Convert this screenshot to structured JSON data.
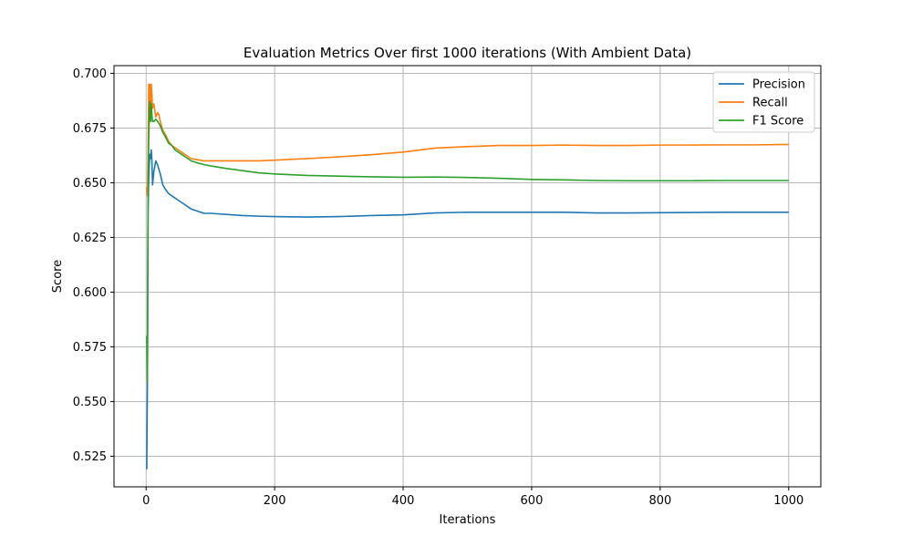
{
  "chart_data": {
    "type": "line",
    "title": "Evaluation Metrics Over first 1000 iterations (With Ambient Data)",
    "xlabel": "Iterations",
    "ylabel": "Score",
    "xlim": [
      -50,
      1050
    ],
    "ylim": [
      0.511,
      0.7035
    ],
    "xticks": [
      0,
      200,
      400,
      600,
      800,
      1000
    ],
    "yticks": [
      0.525,
      0.55,
      0.575,
      0.6,
      0.625,
      0.65,
      0.675,
      0.7
    ],
    "ytick_labels": [
      "0.525",
      "0.550",
      "0.575",
      "0.600",
      "0.625",
      "0.650",
      "0.675",
      "0.700"
    ],
    "grid": true,
    "legend_position": "top-right",
    "series": [
      {
        "name": "Precision",
        "color": "#1f77b4",
        "points": [
          [
            1,
            0.519
          ],
          [
            2,
            0.559
          ],
          [
            3,
            0.637
          ],
          [
            4,
            0.651
          ],
          [
            5,
            0.659
          ],
          [
            6,
            0.663
          ],
          [
            7,
            0.661
          ],
          [
            8,
            0.665
          ],
          [
            9,
            0.66
          ],
          [
            10,
            0.649
          ],
          [
            12,
            0.655
          ],
          [
            15,
            0.66
          ],
          [
            18,
            0.658
          ],
          [
            22,
            0.654
          ],
          [
            26,
            0.649
          ],
          [
            30,
            0.647
          ],
          [
            35,
            0.645
          ],
          [
            40,
            0.644
          ],
          [
            45,
            0.643
          ],
          [
            50,
            0.642
          ],
          [
            55,
            0.641
          ],
          [
            60,
            0.64
          ],
          [
            65,
            0.639
          ],
          [
            70,
            0.638
          ],
          [
            80,
            0.637
          ],
          [
            90,
            0.636
          ],
          [
            100,
            0.636
          ],
          [
            125,
            0.6355
          ],
          [
            150,
            0.635
          ],
          [
            175,
            0.6347
          ],
          [
            200,
            0.6345
          ],
          [
            250,
            0.6343
          ],
          [
            300,
            0.6345
          ],
          [
            350,
            0.635
          ],
          [
            400,
            0.6353
          ],
          [
            450,
            0.6362
          ],
          [
            500,
            0.6365
          ],
          [
            550,
            0.6365
          ],
          [
            600,
            0.6365
          ],
          [
            650,
            0.6365
          ],
          [
            700,
            0.6362
          ],
          [
            750,
            0.6362
          ],
          [
            800,
            0.6363
          ],
          [
            850,
            0.6364
          ],
          [
            900,
            0.6365
          ],
          [
            950,
            0.6365
          ],
          [
            1000,
            0.6365
          ]
        ]
      },
      {
        "name": "Recall",
        "color": "#ff7f0e",
        "points": [
          [
            1,
            0.648
          ],
          [
            2,
            0.644
          ],
          [
            3,
            0.662
          ],
          [
            4,
            0.695
          ],
          [
            5,
            0.685
          ],
          [
            6,
            0.695
          ],
          [
            7,
            0.685
          ],
          [
            8,
            0.695
          ],
          [
            9,
            0.69
          ],
          [
            10,
            0.684
          ],
          [
            12,
            0.686
          ],
          [
            15,
            0.68
          ],
          [
            18,
            0.682
          ],
          [
            20,
            0.681
          ],
          [
            22,
            0.678
          ],
          [
            26,
            0.674
          ],
          [
            30,
            0.672
          ],
          [
            35,
            0.669
          ],
          [
            40,
            0.667
          ],
          [
            45,
            0.666
          ],
          [
            50,
            0.665
          ],
          [
            55,
            0.664
          ],
          [
            60,
            0.663
          ],
          [
            65,
            0.662
          ],
          [
            70,
            0.661
          ],
          [
            80,
            0.6605
          ],
          [
            90,
            0.66
          ],
          [
            100,
            0.66
          ],
          [
            125,
            0.66
          ],
          [
            150,
            0.66
          ],
          [
            175,
            0.66
          ],
          [
            200,
            0.6603
          ],
          [
            250,
            0.661
          ],
          [
            300,
            0.6618
          ],
          [
            350,
            0.6628
          ],
          [
            400,
            0.664
          ],
          [
            450,
            0.6658
          ],
          [
            500,
            0.6665
          ],
          [
            550,
            0.667
          ],
          [
            600,
            0.667
          ],
          [
            650,
            0.6672
          ],
          [
            700,
            0.667
          ],
          [
            750,
            0.667
          ],
          [
            800,
            0.6672
          ],
          [
            850,
            0.6672
          ],
          [
            900,
            0.6673
          ],
          [
            950,
            0.6673
          ],
          [
            1000,
            0.6675
          ]
        ]
      },
      {
        "name": "F1 Score",
        "color": "#2ca02c",
        "points": [
          [
            1,
            0.58
          ],
          [
            2,
            0.559
          ],
          [
            3,
            0.637
          ],
          [
            4,
            0.67
          ],
          [
            5,
            0.683
          ],
          [
            6,
            0.687
          ],
          [
            7,
            0.678
          ],
          [
            8,
            0.686
          ],
          [
            9,
            0.681
          ],
          [
            10,
            0.678
          ],
          [
            12,
            0.678
          ],
          [
            15,
            0.679
          ],
          [
            18,
            0.678
          ],
          [
            20,
            0.677
          ],
          [
            22,
            0.676
          ],
          [
            26,
            0.673
          ],
          [
            30,
            0.671
          ],
          [
            35,
            0.668
          ],
          [
            40,
            0.667
          ],
          [
            45,
            0.665
          ],
          [
            50,
            0.664
          ],
          [
            55,
            0.663
          ],
          [
            60,
            0.662
          ],
          [
            65,
            0.661
          ],
          [
            70,
            0.66
          ],
          [
            80,
            0.659
          ],
          [
            90,
            0.6583
          ],
          [
            100,
            0.6577
          ],
          [
            125,
            0.6565
          ],
          [
            150,
            0.6555
          ],
          [
            175,
            0.6545
          ],
          [
            200,
            0.654
          ],
          [
            250,
            0.6533
          ],
          [
            300,
            0.653
          ],
          [
            350,
            0.6527
          ],
          [
            400,
            0.6525
          ],
          [
            450,
            0.6526
          ],
          [
            500,
            0.6524
          ],
          [
            550,
            0.652
          ],
          [
            600,
            0.6515
          ],
          [
            650,
            0.6513
          ],
          [
            700,
            0.651
          ],
          [
            750,
            0.6509
          ],
          [
            800,
            0.6509
          ],
          [
            850,
            0.6509
          ],
          [
            900,
            0.651
          ],
          [
            950,
            0.651
          ],
          [
            1000,
            0.651
          ]
        ]
      }
    ]
  }
}
